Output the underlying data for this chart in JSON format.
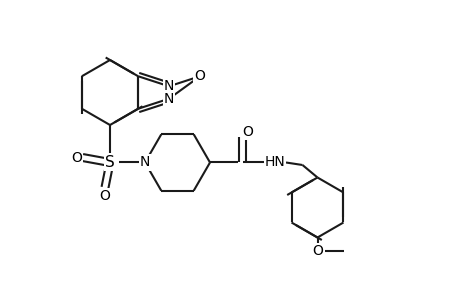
{
  "bg_color": "#ffffff",
  "line_color": "#1a1a1a",
  "lw": 1.5,
  "fs": 10,
  "fig_width": 4.6,
  "fig_height": 3.0,
  "dpi": 100,
  "xlim": [
    0,
    9.2
  ],
  "ylim": [
    0,
    6.0
  ]
}
